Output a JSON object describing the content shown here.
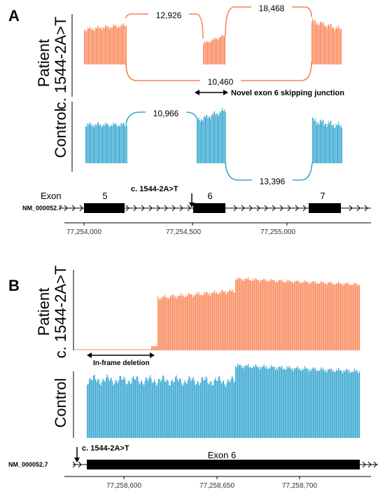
{
  "colors": {
    "patient": "#FA8B5F",
    "control": "#3AA8D0",
    "line_patient": "#F5845A",
    "line_control": "#3AA8D0"
  },
  "panel_a": {
    "letter": "A",
    "patient_label_1": "Patient",
    "patient_label_2": "c. 1544-2A>T",
    "control_label": "Control",
    "patient_junctions": [
      "12,926",
      "18,468",
      "10,460"
    ],
    "control_junctions": [
      "10,966",
      "13,396"
    ],
    "novel_junction_note": "Novel exon 6 skipping junction",
    "exon_header": "Exon",
    "exons": [
      "5",
      "6",
      "7"
    ],
    "variant_label": "c. 1544-2A>T",
    "transcript": "NM_000052.7",
    "ticks": [
      "77,254,000",
      "77,254,500",
      "77,255,000"
    ]
  },
  "panel_b": {
    "letter": "B",
    "patient_label_1": "Patient",
    "patient_label_2": "c. 1544-2A>T",
    "control_label": "Control",
    "deletion_note": "In-frame deletion",
    "variant_label": "c. 1544-2A>T",
    "exon_label": "Exon 6",
    "transcript": "NM_000052.7",
    "ticks": [
      "77,258,600",
      "77,258,650",
      "77,258,700"
    ]
  }
}
